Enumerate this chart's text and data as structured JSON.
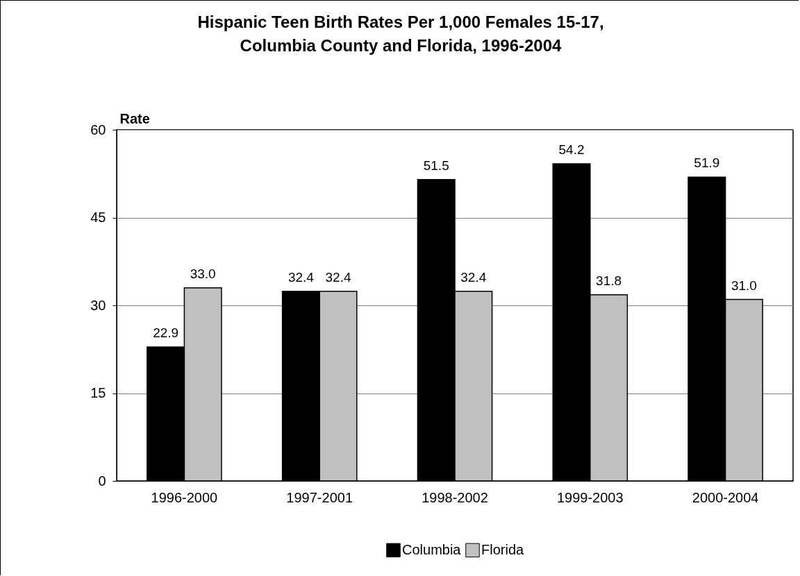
{
  "chart_data": {
    "type": "bar",
    "title": "Hispanic Teen Birth Rates Per 1,000 Females 15-17,\nColumbia County and Florida, 1996-2004",
    "ylabel": "Rate",
    "categories": [
      "1996-2000",
      "1997-2001",
      "1998-2002",
      "1999-2003",
      "2000-2004"
    ],
    "series": [
      {
        "name": "Columbia",
        "color": "#000000",
        "values": [
          22.9,
          32.4,
          51.5,
          54.2,
          51.9
        ],
        "value_labels": [
          "22.9",
          "32.4",
          "51.5",
          "54.2",
          "51.9"
        ]
      },
      {
        "name": "Florida",
        "color": "#c0c0c0",
        "values": [
          33.0,
          32.4,
          32.4,
          31.8,
          31.0
        ],
        "value_labels": [
          "33.0",
          "32.4",
          "32.4",
          "31.8",
          "31.0"
        ]
      }
    ],
    "ylim": [
      0,
      60
    ],
    "yticks": [
      0,
      15,
      30,
      45,
      60
    ],
    "grid": "y",
    "legend": "bottom"
  }
}
